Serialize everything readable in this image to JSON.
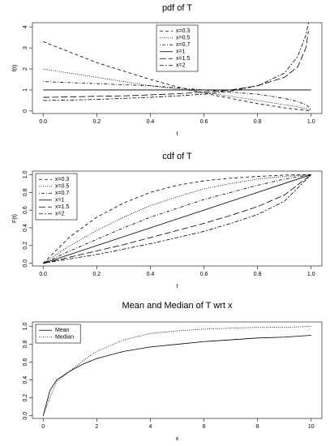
{
  "chart_data": [
    {
      "type": "line",
      "title": "pdf of T",
      "xlabel": "t",
      "ylabel": "f(t)",
      "x": [
        0,
        0.1,
        0.2,
        0.3,
        0.4,
        0.5,
        0.6,
        0.7,
        0.8,
        0.9,
        0.95,
        0.98,
        0.99,
        1
      ],
      "series": [
        {
          "name": "x=0.3",
          "color": "#000000",
          "dash": "dashed",
          "values": [
            3.3,
            2.8,
            2.3,
            1.9,
            1.5,
            1.15,
            0.85,
            0.6,
            0.35,
            0.15,
            0.07,
            0.03,
            0.02,
            0
          ]
        },
        {
          "name": "x=0.5",
          "color": "#000000",
          "dash": "dotted",
          "values": [
            2.0,
            1.8,
            1.6,
            1.4,
            1.2,
            1.05,
            0.9,
            0.7,
            0.5,
            0.3,
            0.2,
            0.1,
            0.06,
            0.05
          ]
        },
        {
          "name": "x=0.7",
          "color": "#000000",
          "dash": "dotdash",
          "values": [
            1.4,
            1.35,
            1.3,
            1.25,
            1.2,
            1.1,
            1.0,
            0.9,
            0.8,
            0.6,
            0.45,
            0.3,
            0.2,
            0.05
          ]
        },
        {
          "name": "x=1",
          "color": "#000000",
          "dash": "solid",
          "values": [
            1,
            1,
            1,
            1,
            1,
            1,
            1,
            1,
            1,
            1,
            1,
            1,
            1,
            1
          ]
        },
        {
          "name": "x=1.5",
          "color": "#000000",
          "dash": "longdash",
          "values": [
            0.65,
            0.67,
            0.7,
            0.72,
            0.77,
            0.82,
            0.9,
            1.0,
            1.2,
            1.6,
            2.1,
            3.0,
            3.8,
            null
          ]
        },
        {
          "name": "x=2",
          "color": "#000000",
          "dash": "twodash",
          "values": [
            0.5,
            0.52,
            0.55,
            0.6,
            0.65,
            0.72,
            0.8,
            0.95,
            1.2,
            1.8,
            2.6,
            3.6,
            4.2,
            null
          ]
        }
      ],
      "xlim": [
        -0.04,
        1.04
      ],
      "ylim": [
        -0.12,
        4.2
      ],
      "xticks": [
        {
          "value": 0,
          "label": "0.0"
        },
        0.2,
        0.4,
        0.6,
        0.8,
        {
          "value": 1,
          "label": "1.0"
        }
      ],
      "yticks": [
        0,
        1,
        2,
        3,
        4
      ],
      "legend": "top"
    },
    {
      "type": "line",
      "title": "cdf of T",
      "xlabel": "t",
      "ylabel": "F(t)",
      "x": [
        0,
        0.1,
        0.2,
        0.3,
        0.4,
        0.5,
        0.6,
        0.7,
        0.8,
        0.9,
        1
      ],
      "series": [
        {
          "name": "x=0.3",
          "color": "#000000",
          "dash": "dashed",
          "values": [
            0,
            0.3,
            0.52,
            0.68,
            0.8,
            0.88,
            0.93,
            0.96,
            0.98,
            0.995,
            1
          ]
        },
        {
          "name": "x=0.5",
          "color": "#000000",
          "dash": "dotted",
          "values": [
            0,
            0.2,
            0.37,
            0.52,
            0.65,
            0.75,
            0.84,
            0.9,
            0.95,
            0.98,
            1
          ]
        },
        {
          "name": "x=0.7",
          "color": "#000000",
          "dash": "dotdash",
          "values": [
            0,
            0.14,
            0.27,
            0.4,
            0.52,
            0.62,
            0.72,
            0.8,
            0.88,
            0.95,
            1
          ]
        },
        {
          "name": "x=1",
          "color": "#000000",
          "dash": "solid",
          "values": [
            0,
            0.1,
            0.2,
            0.3,
            0.4,
            0.5,
            0.6,
            0.7,
            0.8,
            0.9,
            1
          ]
        },
        {
          "name": "x=1.5",
          "color": "#000000",
          "dash": "longdash",
          "values": [
            0,
            0.07,
            0.14,
            0.21,
            0.29,
            0.37,
            0.45,
            0.54,
            0.64,
            0.77,
            1
          ]
        },
        {
          "name": "x=2",
          "color": "#000000",
          "dash": "twodash",
          "values": [
            0,
            0.05,
            0.1,
            0.16,
            0.22,
            0.29,
            0.36,
            0.45,
            0.55,
            0.7,
            1
          ]
        }
      ],
      "xlim": [
        -0.04,
        1.04
      ],
      "ylim": [
        -0.03,
        1.04
      ],
      "xticks": [
        {
          "value": 0,
          "label": "0.0"
        },
        0.2,
        0.4,
        0.6,
        0.8,
        {
          "value": 1,
          "label": "1.0"
        }
      ],
      "yticks": [
        {
          "value": 0,
          "label": "0.0"
        },
        0.2,
        0.4,
        0.6,
        0.8,
        {
          "value": 1,
          "label": "1.0"
        }
      ],
      "legend": "topleft"
    },
    {
      "type": "line",
      "title": "Mean and Median of T wrt x",
      "xlabel": "x",
      "x": [
        0,
        0.25,
        0.5,
        1,
        1.5,
        2,
        3,
        4,
        5,
        6,
        7,
        8,
        9,
        10
      ],
      "series": [
        {
          "name": "Mean",
          "color": "#000000",
          "dash": "solid",
          "values": [
            0,
            0.28,
            0.4,
            0.5,
            0.58,
            0.64,
            0.72,
            0.77,
            0.8,
            0.83,
            0.85,
            0.87,
            0.88,
            0.9
          ]
        },
        {
          "name": "Median",
          "color": "#000000",
          "dash": "dotted",
          "values": [
            0,
            0.2,
            0.38,
            0.5,
            0.62,
            0.72,
            0.85,
            0.92,
            0.95,
            0.97,
            0.98,
            0.99,
            0.99,
            1.0
          ]
        }
      ],
      "xlim": [
        -0.4,
        10.4
      ],
      "ylim": [
        -0.03,
        1.05
      ],
      "xticks": [
        0,
        2,
        4,
        6,
        8,
        10
      ],
      "yticks": [
        {
          "value": 0,
          "label": "0.0"
        },
        0.2,
        0.4,
        0.6,
        0.8,
        {
          "value": 1,
          "label": "1.0"
        }
      ],
      "legend": "topleft"
    }
  ]
}
